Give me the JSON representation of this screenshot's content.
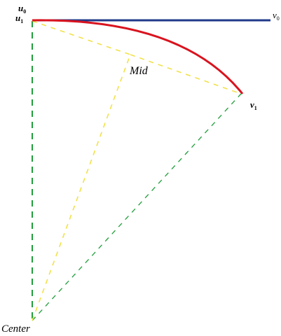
{
  "labels": {
    "u0": {
      "letter": "u",
      "sub": "0"
    },
    "u1": {
      "letter": "u",
      "sub": "1"
    },
    "v0": {
      "letter": "v",
      "sub": "0"
    },
    "v1": {
      "letter": "v",
      "sub": "1"
    },
    "mid": "Mid",
    "center": "Center"
  },
  "colors": {
    "horizontal_line": "#1f3a8a",
    "arc": "#d9131e",
    "chord_dashes": "#f2e14a",
    "mid_dashes": "#f2e14a",
    "left_dashes": "#1f9e3a",
    "right_dashes": "#1f9e3a"
  }
}
